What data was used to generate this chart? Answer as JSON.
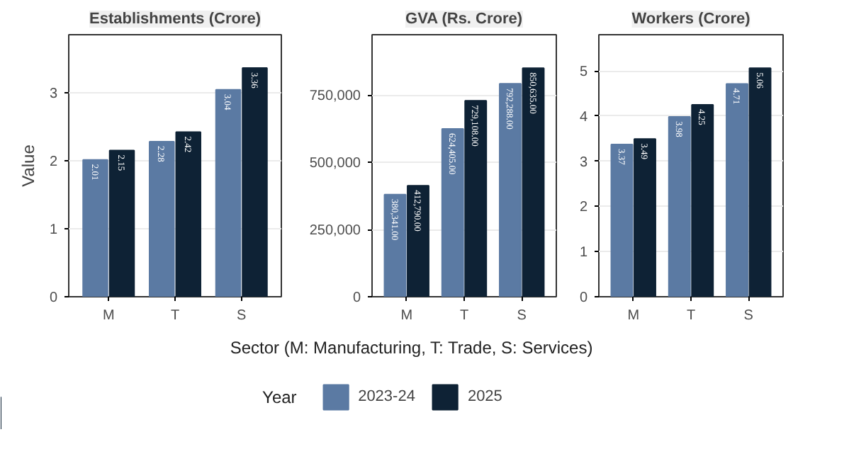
{
  "chart_data": [
    {
      "type": "bar",
      "title": "Establishments (Crore)",
      "ylabel": "Value",
      "categories": [
        "M",
        "T",
        "S"
      ],
      "ylim": [
        0,
        3.85
      ],
      "yticks": [
        0,
        1,
        2,
        3
      ],
      "grid": "y",
      "series": [
        {
          "color": "#5b7aa3",
          "values": [
            2.01,
            2.28,
            3.04
          ],
          "value_labels": [
            "2.01",
            "2.28",
            "3.04"
          ]
        },
        {
          "color": "#0e2235",
          "values": [
            2.15,
            2.42,
            3.36
          ],
          "value_labels": [
            "2.15",
            "2.42",
            "3.36"
          ]
        }
      ]
    },
    {
      "type": "bar",
      "title": "GVA (Rs. Crore)",
      "xlabel": "Sector (M: Manufacturing, T: Trade, S: Services)",
      "legend_title": "Year",
      "legend": "bottom",
      "categories": [
        "M",
        "T",
        "S"
      ],
      "ylim": [
        0,
        975000
      ],
      "yticks": [
        {
          "value": 0,
          "label": "0"
        },
        {
          "value": 250000,
          "label": "250,000"
        },
        {
          "value": 500000,
          "label": "500,000"
        },
        {
          "value": 750000,
          "label": "750,000"
        }
      ],
      "grid": "y",
      "series": [
        {
          "name": "2023-24",
          "color": "#5b7aa3",
          "values": [
            380341,
            624405,
            792288
          ],
          "value_labels": [
            "380,341.00",
            "624,405.00",
            "792,288.00"
          ]
        },
        {
          "name": "2025",
          "color": "#0e2235",
          "values": [
            412790,
            729108,
            850635
          ],
          "value_labels": [
            "412,790.00",
            "729,108.00",
            "850,635.00"
          ]
        }
      ]
    },
    {
      "type": "bar",
      "title": "Workers (Crore)",
      "categories": [
        "M",
        "T",
        "S"
      ],
      "ylim": [
        0,
        5.8
      ],
      "yticks": [
        0,
        1,
        2,
        3,
        4,
        5
      ],
      "grid": "y",
      "series": [
        {
          "color": "#5b7aa3",
          "values": [
            3.37,
            3.98,
            4.71
          ],
          "value_labels": [
            "3.37",
            "3.98",
            "4.71"
          ]
        },
        {
          "color": "#0e2235",
          "values": [
            3.49,
            4.25,
            5.06
          ],
          "value_labels": [
            "3.49",
            "4.25",
            "5.06"
          ]
        }
      ]
    }
  ]
}
